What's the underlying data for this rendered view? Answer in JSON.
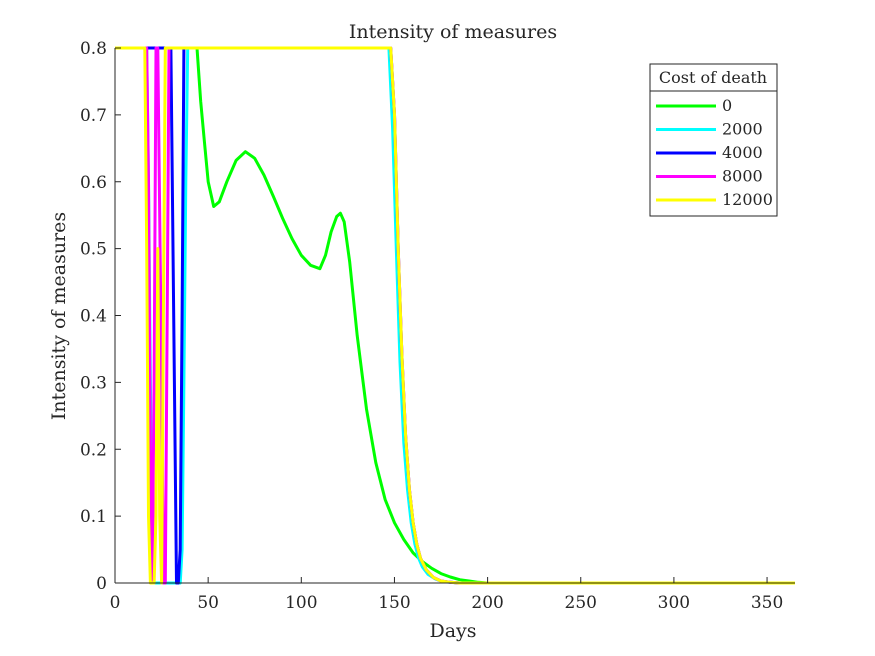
{
  "chart_data": {
    "type": "line",
    "title": "Intensity of measures",
    "xlabel": "Days",
    "ylabel": "Intensity of measures",
    "xlim": [
      0,
      365
    ],
    "ylim": [
      0,
      0.8
    ],
    "x_ticks": [
      0,
      50,
      100,
      150,
      200,
      250,
      300,
      350
    ],
    "y_ticks": [
      0,
      0.1,
      0.2,
      0.3,
      0.4,
      0.5,
      0.6,
      0.7,
      0.8
    ],
    "y_tick_labels": [
      "0",
      "0.1",
      "0.2",
      "0.3",
      "0.4",
      "0.5",
      "0.6",
      "0.7",
      "0.8"
    ],
    "grid": false,
    "box": false,
    "legend": {
      "title": "Cost of death",
      "location": "top-right"
    },
    "series": [
      {
        "name": "0",
        "color": "#00ff00",
        "x": [
          0,
          44,
          46,
          48,
          50,
          53,
          56,
          60,
          65,
          70,
          75,
          80,
          85,
          90,
          95,
          100,
          105,
          110,
          113,
          116,
          119,
          121,
          123,
          126,
          130,
          135,
          140,
          145,
          150,
          155,
          160,
          165,
          170,
          175,
          180,
          185,
          190,
          195,
          200,
          205,
          365
        ],
        "y": [
          0.8,
          0.8,
          0.72,
          0.66,
          0.6,
          0.563,
          0.57,
          0.6,
          0.632,
          0.645,
          0.635,
          0.61,
          0.578,
          0.545,
          0.515,
          0.49,
          0.475,
          0.47,
          0.49,
          0.525,
          0.548,
          0.553,
          0.54,
          0.48,
          0.37,
          0.26,
          0.18,
          0.125,
          0.09,
          0.065,
          0.045,
          0.032,
          0.022,
          0.014,
          0.009,
          0.005,
          0.003,
          0.001,
          0,
          0,
          0
        ]
      },
      {
        "name": "2000",
        "color": "#00ffff",
        "x": [
          0,
          17,
          18,
          19,
          20,
          21,
          22,
          35,
          36,
          37,
          38,
          39,
          147,
          149,
          151,
          153,
          155,
          157,
          159,
          161,
          163,
          165,
          168,
          172,
          176,
          180,
          185,
          365
        ],
        "y": [
          0.8,
          0.8,
          0.6,
          0.3,
          0.05,
          0,
          0,
          0,
          0.05,
          0.3,
          0.6,
          0.8,
          0.8,
          0.68,
          0.5,
          0.33,
          0.21,
          0.14,
          0.09,
          0.058,
          0.037,
          0.024,
          0.013,
          0.006,
          0.002,
          0.001,
          0,
          0
        ]
      },
      {
        "name": "4000",
        "color": "#0000ff",
        "x": [
          0,
          18,
          19,
          20,
          21,
          22,
          23,
          26,
          27,
          28,
          29,
          30,
          33,
          34,
          35,
          36,
          37,
          148,
          150,
          152,
          154,
          156,
          158,
          160,
          162,
          164,
          167,
          171,
          175,
          180,
          185,
          365
        ],
        "y": [
          0.8,
          0.8,
          0.8,
          0.8,
          0.8,
          0.8,
          0.8,
          0.8,
          0.8,
          0.8,
          0.8,
          0.8,
          0,
          0,
          0.05,
          0.4,
          0.8,
          0.8,
          0.7,
          0.5,
          0.34,
          0.22,
          0.14,
          0.09,
          0.058,
          0.037,
          0.02,
          0.008,
          0.003,
          0.001,
          0,
          0
        ]
      },
      {
        "name": "8000",
        "color": "#ff00ff",
        "x": [
          0,
          17,
          18,
          19,
          20,
          21,
          22,
          23,
          25,
          26,
          27,
          28,
          29,
          148,
          150,
          152,
          154,
          156,
          158,
          160,
          162,
          164,
          167,
          171,
          175,
          180,
          185,
          365
        ],
        "y": [
          0.8,
          0.8,
          0.6,
          0.2,
          0,
          0.3,
          0.8,
          0.8,
          0.3,
          0,
          0,
          0.4,
          0.8,
          0.8,
          0.7,
          0.5,
          0.34,
          0.22,
          0.14,
          0.09,
          0.058,
          0.037,
          0.02,
          0.008,
          0.003,
          0.001,
          0,
          0
        ]
      },
      {
        "name": "12000",
        "color": "#ffff00",
        "x": [
          0,
          16,
          17,
          18,
          19,
          20,
          21,
          22,
          23,
          24,
          25,
          26,
          27,
          148,
          150,
          152,
          154,
          156,
          158,
          160,
          162,
          164,
          167,
          171,
          175,
          180,
          185,
          365
        ],
        "y": [
          0.8,
          0.8,
          0.5,
          0.1,
          0,
          0,
          0,
          0.1,
          0.5,
          0.1,
          0,
          0.4,
          0.8,
          0.8,
          0.7,
          0.5,
          0.34,
          0.22,
          0.14,
          0.09,
          0.058,
          0.037,
          0.02,
          0.008,
          0.003,
          0.001,
          0,
          0
        ]
      }
    ]
  }
}
